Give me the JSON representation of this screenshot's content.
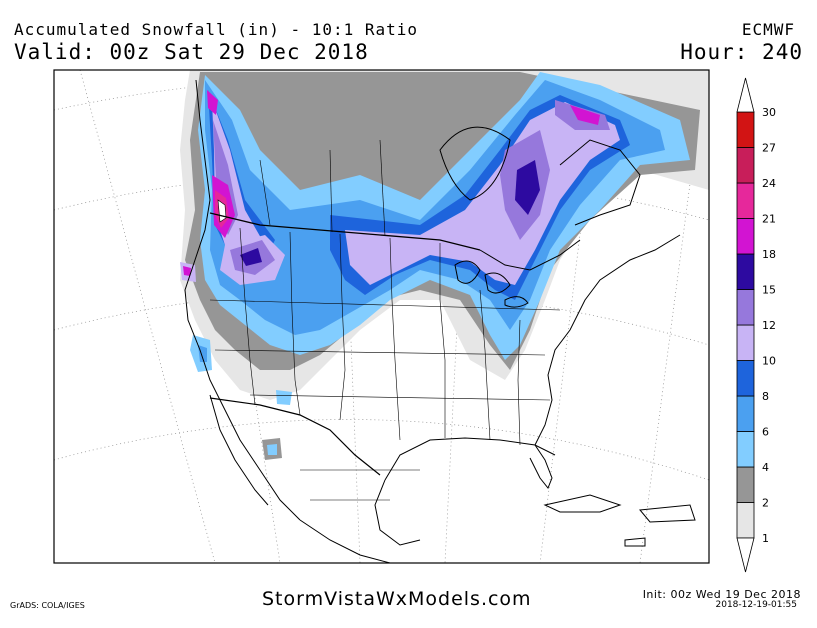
{
  "header": {
    "title_line1": "Accumulated Snowfall (in) - 10:1 Ratio",
    "title_line2": "Valid: 00z Sat 29 Dec 2018",
    "model": "ECMWF",
    "hour": "Hour: 240"
  },
  "footer": {
    "site": "StormVistaWxModels.com",
    "credits": "GrADS: COLA/IGES",
    "init": "Init: 00z Wed 19 Dec 2018",
    "stamp": "2018-12-19-01:55"
  },
  "legend": {
    "levels": [
      {
        "label": "1",
        "color": "#e6e6e6"
      },
      {
        "label": "2",
        "color": "#969696"
      },
      {
        "label": "4",
        "color": "#82cdff"
      },
      {
        "label": "6",
        "color": "#4ba0f0"
      },
      {
        "label": "8",
        "color": "#1e64dc"
      },
      {
        "label": "10",
        "color": "#c8b4f5"
      },
      {
        "label": "12",
        "color": "#9678dc"
      },
      {
        "label": "15",
        "color": "#2d0aa0"
      },
      {
        "label": "18",
        "color": "#d214d2"
      },
      {
        "label": "21",
        "color": "#e6289b"
      },
      {
        "label": "24",
        "color": "#c81e5a"
      },
      {
        "label": "27",
        "color": "#d21414"
      },
      {
        "label": "30",
        "color": "#d21414"
      }
    ]
  }
}
